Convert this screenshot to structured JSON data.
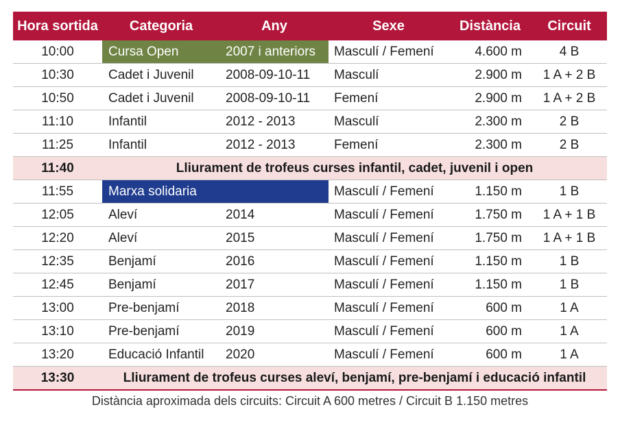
{
  "headers": {
    "time": "Hora sortida",
    "category": "Categoria",
    "year": "Any",
    "sex": "Sexe",
    "distance": "Distància",
    "circuit": "Circuit"
  },
  "rows": [
    {
      "time": "10:00",
      "category": "Cursa Open",
      "year": "2007 i anteriors",
      "sex": "Masculí / Femení",
      "distance": "4.600 m",
      "circuit": "4 B",
      "highlight": "green"
    },
    {
      "time": "10:30",
      "category": "Cadet i Juvenil",
      "year": "2008-09-10-11",
      "sex": "Masculí",
      "distance": "2.900 m",
      "circuit": "1 A + 2 B"
    },
    {
      "time": "10:50",
      "category": "Cadet i Juvenil",
      "year": "2008-09-10-11",
      "sex": "Femení",
      "distance": "2.900 m",
      "circuit": "1 A + 2 B"
    },
    {
      "time": "11:10",
      "category": "Infantil",
      "year": "2012 - 2013",
      "sex": "Masculí",
      "distance": "2.300 m",
      "circuit": "2 B"
    },
    {
      "time": "11:25",
      "category": "Infantil",
      "year": "2012 - 2013",
      "sex": "Femení",
      "distance": "2.300 m",
      "circuit": "2 B"
    },
    {
      "time": "11:40",
      "event": "Lliurament de trofeus curses infantil, cadet, juvenil i open"
    },
    {
      "time": "11:55",
      "category": "Marxa solidaria",
      "year": "",
      "sex": "Masculí / Femení",
      "distance": "1.150 m",
      "circuit": "1 B",
      "highlight": "blue"
    },
    {
      "time": "12:05",
      "category": "Aleví",
      "year": "2014",
      "sex": "Masculí / Femení",
      "distance": "1.750 m",
      "circuit": "1 A + 1 B"
    },
    {
      "time": "12:20",
      "category": "Aleví",
      "year": "2015",
      "sex": "Masculí / Femení",
      "distance": "1.750 m",
      "circuit": "1 A + 1 B"
    },
    {
      "time": "12:35",
      "category": "Benjamí",
      "year": "2016",
      "sex": "Masculí / Femení",
      "distance": "1.150 m",
      "circuit": "1 B"
    },
    {
      "time": "12:45",
      "category": "Benjamí",
      "year": "2017",
      "sex": "Masculí / Femení",
      "distance": "1.150 m",
      "circuit": "1 B"
    },
    {
      "time": "13:00",
      "category": "Pre-benjamí",
      "year": "2018",
      "sex": "Masculí / Femení",
      "distance": "600 m",
      "circuit": "1 A"
    },
    {
      "time": "13:10",
      "category": "Pre-benjamí",
      "year": "2019",
      "sex": "Masculí / Femení",
      "distance": "600 m",
      "circuit": "1 A"
    },
    {
      "time": "13:20",
      "category": "Educació Infantil",
      "year": "2020",
      "sex": "Masculí / Femení",
      "distance": "600 m",
      "circuit": "1 A"
    },
    {
      "time": "13:30",
      "event": "Lliurament de trofeus curses aleví, benjamí, pre-benjamí i educació infantil"
    }
  ],
  "footnote": "Distància aproximada dels circuits: Circuit A 600 metres / Circuit B 1.150 metres",
  "colors": {
    "header": "#b3163b",
    "open_highlight": "#6f8444",
    "marxa_highlight": "#1f3c8f",
    "event_row": "#f7dfdf"
  }
}
